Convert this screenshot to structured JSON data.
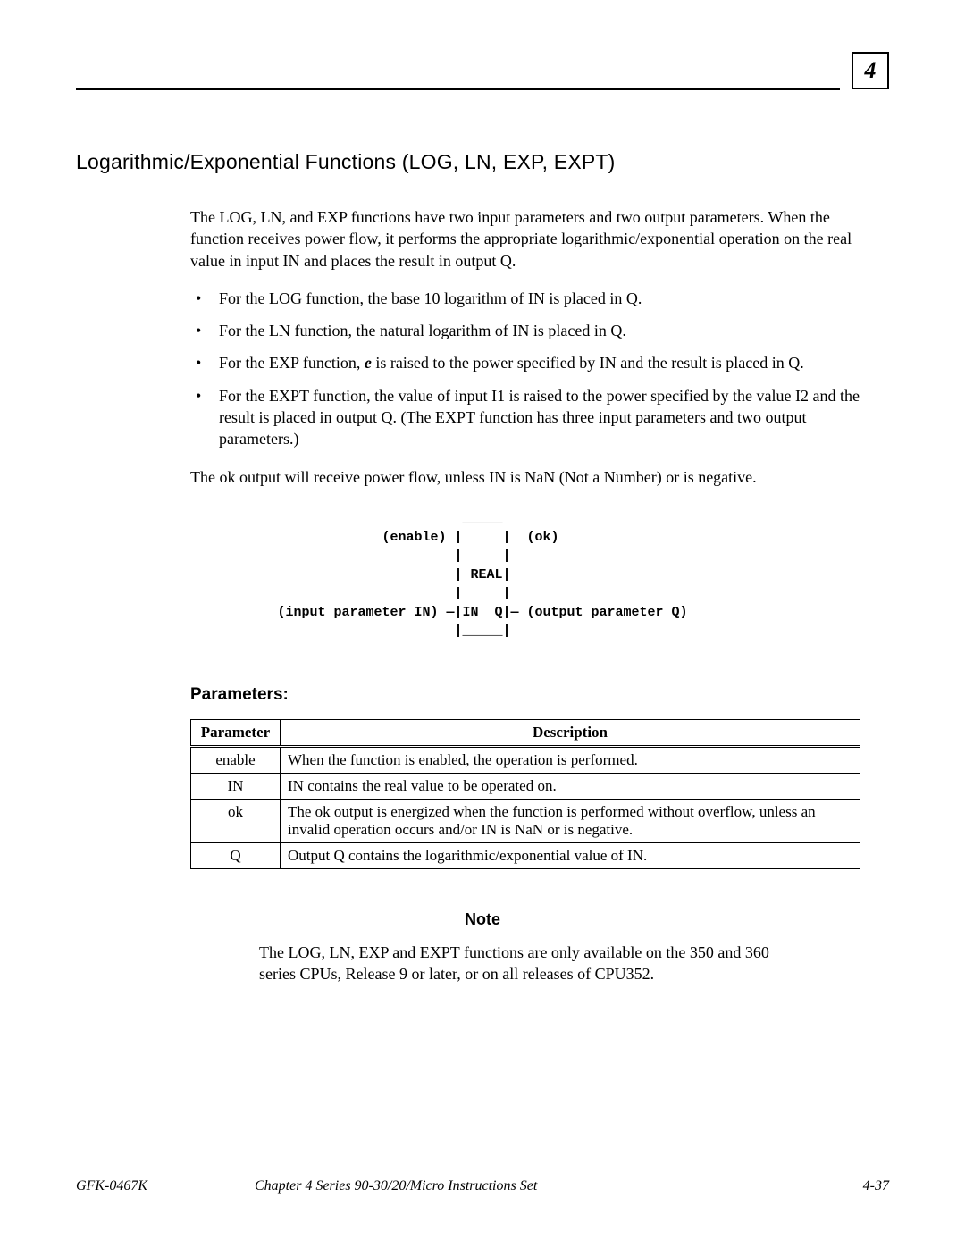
{
  "chapter_number": "4",
  "section_title": "Logarithmic/Exponential Functions     (LOG, LN, EXP, EXPT)",
  "intro": "The LOG, LN, and EXP functions have two input parameters and two output parameters.  When the function receives power flow, it performs the appropriate logarithmic/exponential operation on the real value in input IN and places the result in output Q.",
  "bullets": [
    "For the LOG function, the base 10 logarithm of IN is placed in Q.",
    "For the LN function, the natural logarithm of IN is placed in Q.",
    "For the EXP function, <span class=\"em\">e</span> is raised to the power specified by IN and the result is placed in Q.",
    "For the EXPT function, the value of input I1 is raised to the power specified by the value I2 and the result is placed in output Q.  (The EXPT function has three input parameters and two output parameters.)"
  ],
  "ok_line": "The ok output will receive power flow, unless IN is NaN (Not a Number) or is negative.",
  "diagram": "                       _____\n             (enable) |     |  (ok)\n                      |     |\n                      | REAL|\n                      |     |\n(input parameter IN) —|IN  Q|— (output parameter Q)\n                      |_____|",
  "parameters_heading": "Parameters:",
  "table": {
    "headers": [
      "Parameter",
      "Description"
    ],
    "rows": [
      [
        "enable",
        "When the function is enabled, the operation is performed."
      ],
      [
        "IN",
        "IN contains the real value to be operated on."
      ],
      [
        "ok",
        "The ok output is energized when the function is performed without overflow, unless an invalid operation occurs and/or IN is NaN or is negative."
      ],
      [
        "Q",
        "Output Q contains the logarithmic/exponential value of IN."
      ]
    ]
  },
  "note_heading": "Note",
  "note_body": "The LOG, LN, EXP and EXPT functions are only available on the 350 and 360 series CPUs, Release 9 or later, or on all releases of CPU352.",
  "footer": {
    "left": "GFK-0467K",
    "middle": "Chapter 4  Series 90-30/20/Micro Instructions Set",
    "right": "4-37"
  },
  "colors": {
    "text": "#000000",
    "background": "#ffffff",
    "border": "#000000"
  },
  "fonts": {
    "body": "Times New Roman",
    "heading": "Arial",
    "mono": "Courier New"
  }
}
